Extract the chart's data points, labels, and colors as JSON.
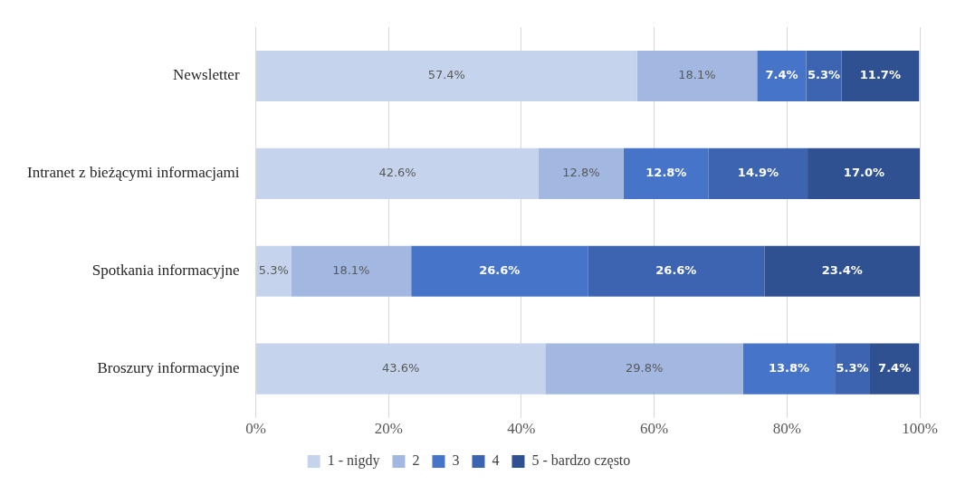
{
  "chart_data": {
    "type": "bar",
    "orientation": "horizontal",
    "stacked": true,
    "categories": [
      "Newsletter",
      "Intranet z bieżącymi informacjami",
      "Spotkania informacyjne",
      "Broszury informacyjne"
    ],
    "series": [
      {
        "name": "1 - nigdy",
        "color": "#c5d4ec",
        "values": [
          57.4,
          42.6,
          5.3,
          43.6
        ],
        "value_labels": [
          "57.4%",
          "42.6%",
          "5.3%",
          "43.6%"
        ]
      },
      {
        "name": "2",
        "color": "#a2b8e0",
        "values": [
          18.1,
          12.8,
          18.1,
          29.8
        ],
        "value_labels": [
          "18.1%",
          "12.8%",
          "18.1%",
          "29.8%"
        ]
      },
      {
        "name": "3",
        "color": "#4674c8",
        "values": [
          7.4,
          12.8,
          26.6,
          13.8
        ],
        "value_labels": [
          "7.4%",
          "12.8%",
          "26.6%",
          "13.8%"
        ]
      },
      {
        "name": "4",
        "color": "#3c64b0",
        "values": [
          5.3,
          14.9,
          26.6,
          5.3
        ],
        "value_labels": [
          "5.3%",
          "14.9%",
          "26.6%",
          "5.3%"
        ]
      },
      {
        "name": "5 - bardzo często",
        "color": "#2f5192",
        "values": [
          11.7,
          17.0,
          23.4,
          7.4
        ],
        "value_labels": [
          "11.7%",
          "17.0%",
          "23.4%",
          "7.4%"
        ]
      }
    ],
    "xlim": [
      0,
      100
    ],
    "xticks": [
      {
        "value": 0,
        "label": "0%"
      },
      {
        "value": 20,
        "label": "20%"
      },
      {
        "value": 40,
        "label": "40%"
      },
      {
        "value": 60,
        "label": "60%"
      },
      {
        "value": 80,
        "label": "80%"
      },
      {
        "value": 100,
        "label": "100%"
      }
    ],
    "grid": "x",
    "legend": "bottom"
  }
}
